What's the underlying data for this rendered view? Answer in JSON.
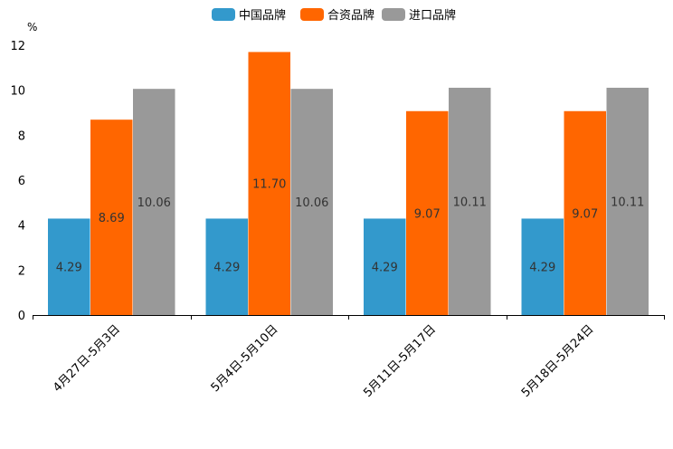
{
  "chart_data": {
    "type": "bar",
    "title": "",
    "xlabel": "",
    "ylabel": "%",
    "ylim": [
      0,
      12
    ],
    "yticks": [
      0,
      2,
      4,
      6,
      8,
      10,
      12
    ],
    "grid": false,
    "legend_position": "top-center",
    "categories": [
      "4月27日-5月3日",
      "5月4日-5月10日",
      "5月11日-5月17日",
      "5月18日-5月24日"
    ],
    "series": [
      {
        "name": "中国品牌",
        "color": "#3399cc",
        "values": [
          4.29,
          4.29,
          4.29,
          4.29
        ],
        "labels": [
          "4.29",
          "4.29",
          "4.29",
          "4.29"
        ]
      },
      {
        "name": "合资品牌",
        "color": "#ff6600",
        "values": [
          8.69,
          11.7,
          9.07,
          9.07
        ],
        "labels": [
          "8.69",
          "11.70",
          "9.07",
          "9.07"
        ]
      },
      {
        "name": "进口品牌",
        "color": "#999999",
        "values": [
          10.06,
          10.06,
          10.11,
          10.11
        ],
        "labels": [
          "10.06",
          "10.06",
          "10.11",
          "10.11"
        ]
      }
    ]
  }
}
